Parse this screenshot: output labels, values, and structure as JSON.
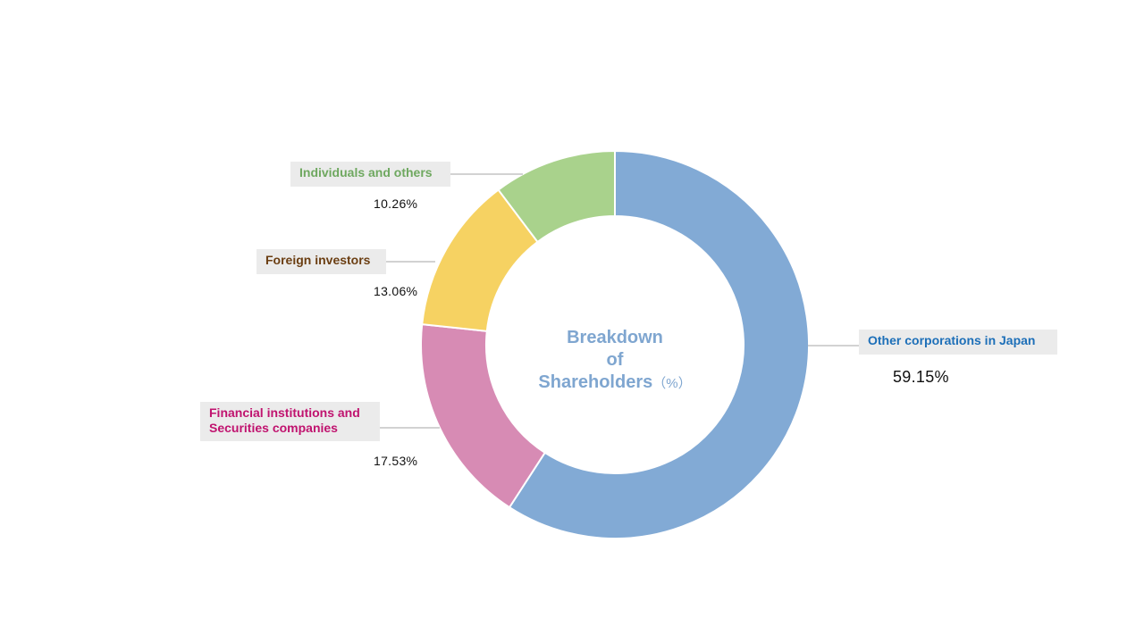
{
  "chart_data": {
    "type": "pie",
    "donut": true,
    "title_lines": [
      "Breakdown",
      "of",
      "Shareholders"
    ],
    "unit": "（%）",
    "slices": [
      {
        "label": "Other corporations in Japan",
        "value": 59.15,
        "display": "59.15%",
        "color": "#82aad5",
        "label_color": "#1d6fb8"
      },
      {
        "label": "Financial institutions and Securities companies",
        "label_lines": [
          "Financial institutions and",
          "Securities companies"
        ],
        "value": 17.53,
        "display": "17.53%",
        "color": "#d78bb4",
        "label_color": "#c0136f"
      },
      {
        "label": "Foreign investors",
        "value": 13.06,
        "display": "13.06%",
        "color": "#f6d262",
        "label_color": "#6b3e12"
      },
      {
        "label": "Individuals and others",
        "value": 10.26,
        "display": "10.26%",
        "color": "#a9d28c",
        "label_color": "#6fa860"
      }
    ]
  }
}
